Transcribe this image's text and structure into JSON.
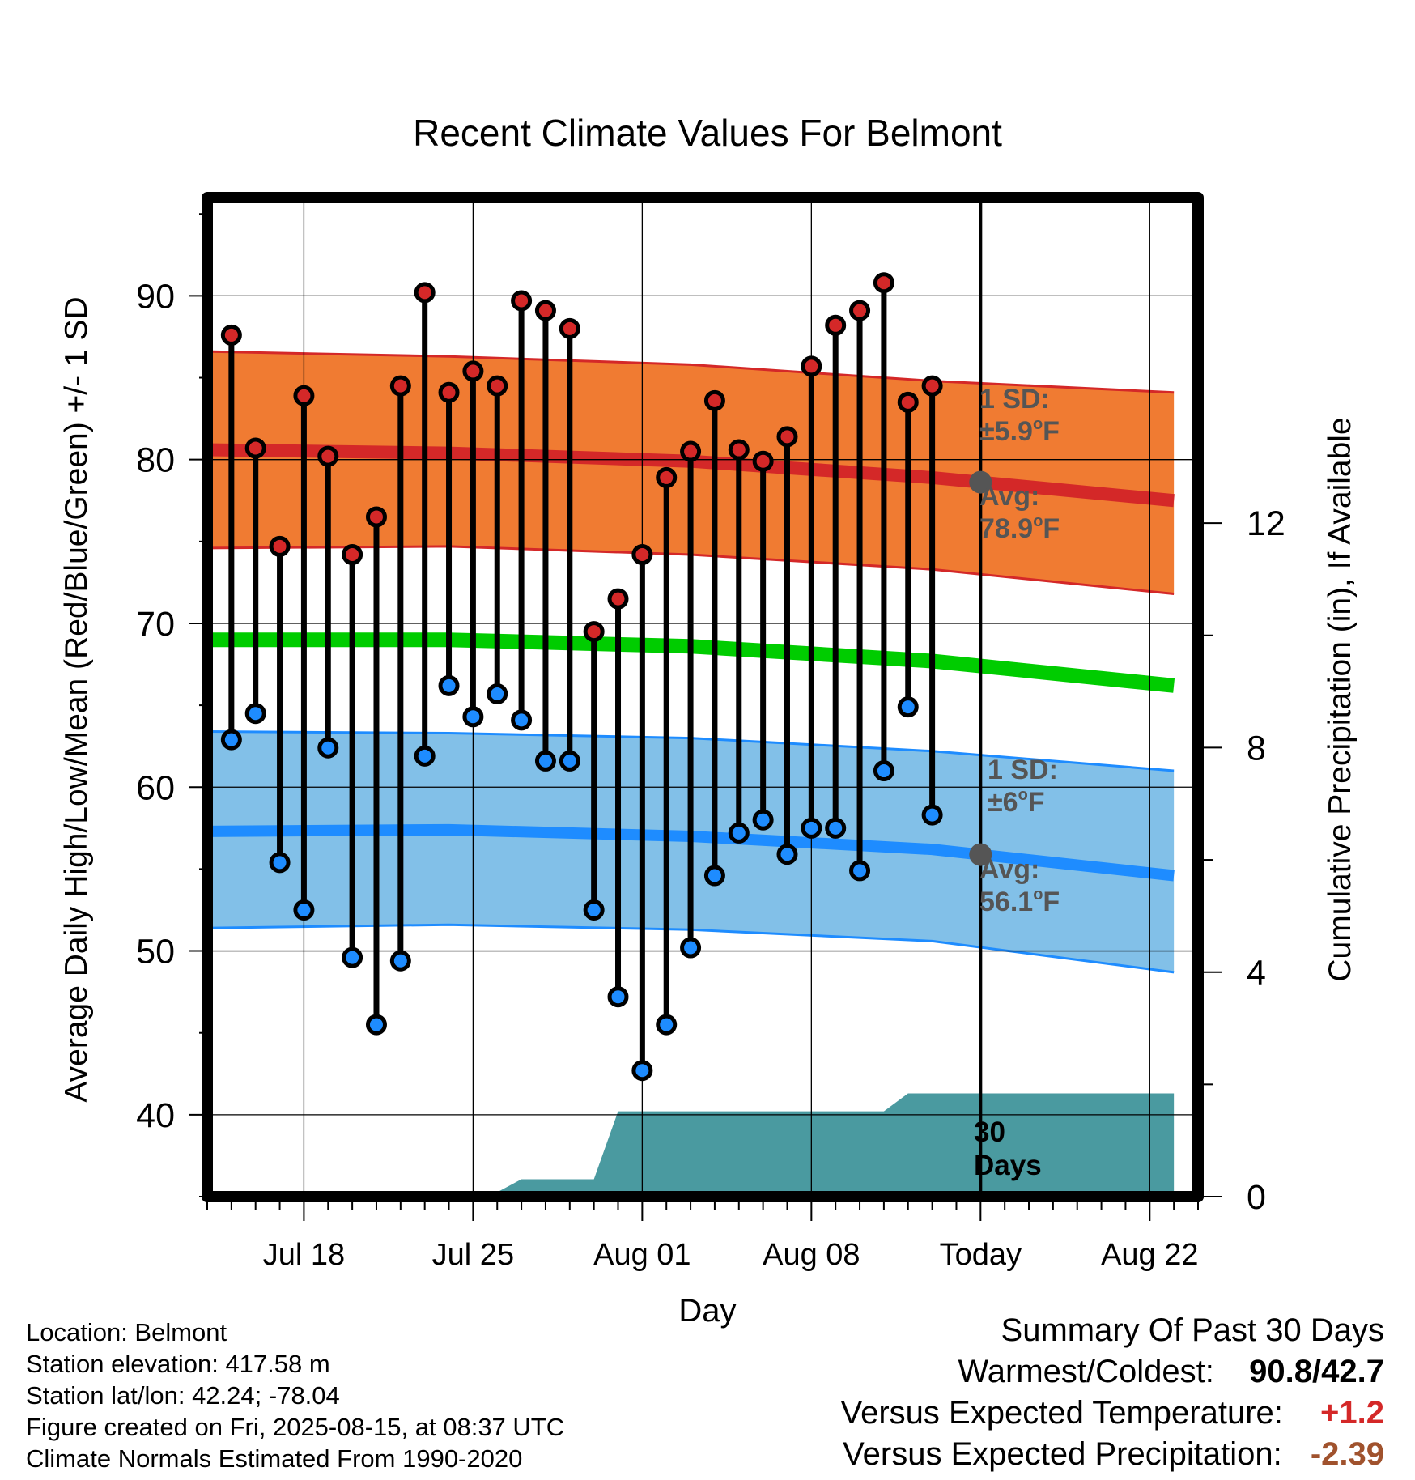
{
  "chart_data": {
    "type": "line",
    "title": "Recent Climate Values For Belmont",
    "xlabel": "Day",
    "ylabel_left": "Average Daily High/Low/Mean (Red/Blue/Green) +/- 1 SD",
    "ylabel_right": "Cumulative Precipitation (in), If Available",
    "x_tick_labels": [
      "Jul 18",
      "Jul 25",
      "Aug 01",
      "Aug 08",
      "Today",
      "Aug 22"
    ],
    "x_tick_dates": [
      "2025-07-18",
      "2025-07-25",
      "2025-08-01",
      "2025-08-08",
      "2025-08-15",
      "2025-08-22"
    ],
    "xlim": [
      "2025-07-14",
      "2025-08-24"
    ],
    "ylim": [
      35,
      96
    ],
    "y_ticks": [
      40,
      50,
      60,
      70,
      80,
      90
    ],
    "y2lim": [
      0,
      17.8
    ],
    "y2_ticks": [
      0,
      4,
      8,
      12
    ],
    "grid": true,
    "today": "2025-08-15",
    "observed": {
      "dates": [
        "2025-07-15",
        "2025-07-16",
        "2025-07-17",
        "2025-07-18",
        "2025-07-19",
        "2025-07-20",
        "2025-07-21",
        "2025-07-22",
        "2025-07-23",
        "2025-07-24",
        "2025-07-25",
        "2025-07-26",
        "2025-07-27",
        "2025-07-28",
        "2025-07-29",
        "2025-07-30",
        "2025-07-31",
        "2025-08-01",
        "2025-08-02",
        "2025-08-03",
        "2025-08-04",
        "2025-08-05",
        "2025-08-06",
        "2025-08-07",
        "2025-08-08",
        "2025-08-09",
        "2025-08-10",
        "2025-08-11",
        "2025-08-12",
        "2025-08-13",
        "2025-08-14"
      ],
      "high": [
        87.6,
        80.7,
        74.7,
        83.9,
        80.2,
        74.2,
        76.5,
        84.5,
        90.2,
        84.1,
        85.4,
        84.5,
        89.7,
        89.1,
        88.0,
        69.5,
        71.5,
        74.2,
        78.9,
        80.5,
        83.6,
        80.6,
        79.9,
        81.4,
        85.7,
        88.2,
        89.1,
        90.8,
        83.5,
        84.5,
        null
      ],
      "low": [
        62.9,
        64.5,
        55.4,
        52.5,
        62.4,
        49.6,
        45.5,
        49.4,
        61.9,
        66.2,
        64.3,
        65.7,
        64.1,
        61.6,
        61.6,
        52.5,
        47.2,
        42.7,
        45.5,
        50.2,
        54.6,
        57.2,
        58.0,
        55.9,
        57.5,
        57.5,
        54.9,
        61.0,
        64.9,
        58.3,
        null
      ]
    },
    "normals": {
      "dates": [
        "2025-07-14",
        "2025-07-24",
        "2025-08-03",
        "2025-08-13",
        "2025-08-23"
      ],
      "high_avg": [
        80.6,
        80.4,
        79.9,
        78.9,
        77.5
      ],
      "high_sd_upper": [
        86.6,
        86.3,
        85.8,
        84.8,
        84.1
      ],
      "high_sd_lower": [
        74.6,
        74.7,
        74.2,
        73.3,
        71.8
      ],
      "mean_avg": [
        69.0,
        69.0,
        68.6,
        67.7,
        66.2
      ],
      "low_avg": [
        57.3,
        57.4,
        57.0,
        56.2,
        54.6
      ],
      "low_sd_upper": [
        63.4,
        63.3,
        63.0,
        62.2,
        61.0
      ],
      "low_sd_lower": [
        51.4,
        51.6,
        51.3,
        50.6,
        48.7
      ]
    },
    "precipitation": {
      "dates": [
        "2025-07-14",
        "2025-07-15",
        "2025-07-18",
        "2025-07-21",
        "2025-07-26",
        "2025-07-27",
        "2025-07-30",
        "2025-07-31",
        "2025-08-11",
        "2025-08-12",
        "2025-08-23"
      ],
      "cumulative": [
        0.0,
        0.04,
        0.04,
        0.08,
        0.08,
        0.31,
        0.31,
        1.52,
        1.52,
        1.84,
        1.84
      ]
    },
    "annotations": {
      "high_sd_line1": "1 SD:",
      "high_sd_line2": "±5.9°F",
      "high_avg_line1": "Avg:",
      "high_avg_line2": "78.9°F",
      "low_sd_line1": "1 SD:",
      "low_sd_line2": "±6°F",
      "low_avg_line1": "Avg:",
      "low_avg_line2": "56.1°F",
      "days_line1": "30",
      "days_line2": "Days"
    },
    "colors": {
      "high_band": "#f07b32",
      "high_line": "#d42828",
      "low_band": "#82c0e8",
      "low_line": "#1e8cff",
      "mean_line": "#00cc00",
      "precip": "#4a9aa0",
      "high_marker": "#d42828",
      "low_marker": "#1e8cff",
      "annotation_text": "#555555",
      "today_dot": "#555555"
    }
  },
  "footer_left": {
    "location": "Location: Belmont",
    "elevation": "Station elevation: 417.58 m",
    "latlon": "Station lat/lon: 42.24; -78.04",
    "created": "Figure created on Fri, 2025-08-15, at 08:37 UTC",
    "normals": "Climate Normals Estimated From 1990-2020"
  },
  "footer_right": {
    "title": "Summary Of Past 30 Days",
    "warm_cold_label": "Warmest/Coldest:",
    "warm_value": "90.8",
    "slash": "/",
    "cold_value": "42.7",
    "temp_label": "Versus Expected Temperature:",
    "temp_value": "+1.2",
    "precip_label": "Versus Expected Precipitation:",
    "precip_value": "-2.39",
    "temp_value_color": "#d42828",
    "precip_value_color": "#a0522d"
  }
}
